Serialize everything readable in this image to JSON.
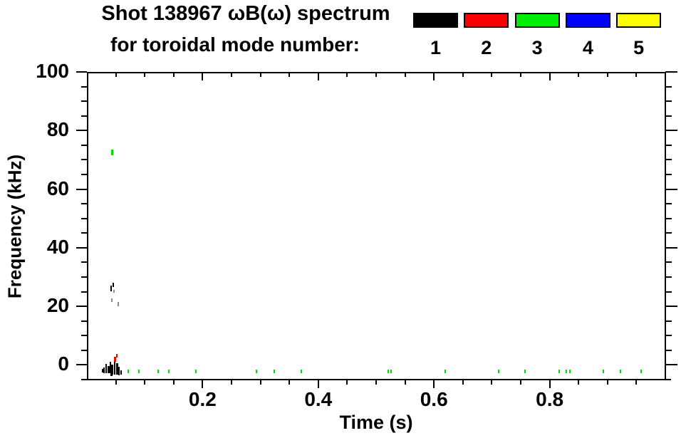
{
  "header": {
    "title_line1": "Shot 138967 ωB(ω) spectrum",
    "title_line2": "for toroidal mode number:"
  },
  "legend": {
    "title": "toroidal mode number",
    "entries": [
      {
        "label": "1",
        "color": "#000000"
      },
      {
        "label": "2",
        "color": "#ff0000"
      },
      {
        "label": "3",
        "color": "#00ee00"
      },
      {
        "label": "4",
        "color": "#0000ff"
      },
      {
        "label": "5",
        "color": "#ffff00"
      }
    ]
  },
  "chart_data": {
    "type": "scatter",
    "title": "Shot 138967 ωB(ω) spectrum for toroidal mode number: 1 2 3 4 5",
    "xlabel": "Time (s)",
    "ylabel": "Frequency (kHz)",
    "xlim": [
      0,
      1.0
    ],
    "ylim": [
      -5,
      100
    ],
    "x_major_ticks": [
      0.2,
      0.4,
      0.6,
      0.8
    ],
    "x_tick_labels": [
      "0.2",
      "0.4",
      "0.6",
      "0.8"
    ],
    "x_minor_step": 0.05,
    "y_major_ticks": [
      0,
      20,
      40,
      60,
      80,
      100
    ],
    "y_tick_labels": [
      "0",
      "20",
      "40",
      "60",
      "80",
      "100"
    ],
    "y_minor_step": 5,
    "grid": false,
    "legend_position": "top",
    "series": [
      {
        "name": "n=1",
        "color": "#000000",
        "points": [
          {
            "t": 0.027,
            "f": -1.4,
            "h": 1.2,
            "w": 2
          },
          {
            "t": 0.03,
            "f": -0.9,
            "h": 1.9,
            "w": 2
          },
          {
            "t": 0.033,
            "f": 0.3,
            "h": 3.2,
            "w": 2
          },
          {
            "t": 0.037,
            "f": -0.4,
            "h": 2.4,
            "w": 3
          },
          {
            "t": 0.041,
            "f": 1.1,
            "h": 3.9,
            "w": 2
          },
          {
            "t": 0.044,
            "f": 0.1,
            "h": 3.4,
            "w": 3
          },
          {
            "t": 0.048,
            "f": 1.6,
            "h": 4.9,
            "w": 2
          },
          {
            "t": 0.052,
            "f": 0.6,
            "h": 3.9,
            "w": 3
          },
          {
            "t": 0.055,
            "f": -0.6,
            "h": 2.9,
            "w": 2
          },
          {
            "t": 0.059,
            "f": -1.8,
            "h": 1.5,
            "w": 2
          },
          {
            "t": 0.043,
            "f": -2.8,
            "h": 1.0,
            "w": 3
          },
          {
            "t": 0.042,
            "f": 27.1,
            "h": 1.9,
            "w": 2
          },
          {
            "t": 0.046,
            "f": 28.1,
            "h": 1.5,
            "w": 2
          },
          {
            "t": 0.047,
            "f": 25.6,
            "h": 1.0,
            "w": 2,
            "dim": true
          },
          {
            "t": 0.043,
            "f": 22.7,
            "h": 1.2,
            "w": 2,
            "dim": true
          },
          {
            "t": 0.054,
            "f": 21.5,
            "h": 1.5,
            "w": 2,
            "dim": true
          }
        ]
      },
      {
        "name": "n=2",
        "color": "#ff0000",
        "points": [
          {
            "t": 0.049,
            "f": 2.8,
            "h": 1.7,
            "w": 3
          },
          {
            "t": 0.052,
            "f": 3.7,
            "h": 1.2,
            "w": 2
          }
        ]
      },
      {
        "name": "n=3",
        "color": "#00dd00",
        "points": [
          {
            "t": 0.044,
            "f": 73.5,
            "h": 1.9,
            "w": 3
          },
          {
            "t": 0.071,
            "f": -1.6,
            "h": 1.2,
            "w": 2
          },
          {
            "t": 0.09,
            "f": -1.6,
            "h": 1.2,
            "w": 2
          },
          {
            "t": 0.123,
            "f": -1.6,
            "h": 1.2,
            "w": 2
          },
          {
            "t": 0.142,
            "f": -1.6,
            "h": 1.2,
            "w": 2
          },
          {
            "t": 0.188,
            "f": -1.6,
            "h": 1.2,
            "w": 2
          },
          {
            "t": 0.293,
            "f": -1.6,
            "h": 1.2,
            "w": 2
          },
          {
            "t": 0.324,
            "f": -1.6,
            "h": 1.2,
            "w": 2
          },
          {
            "t": 0.371,
            "f": -1.6,
            "h": 1.2,
            "w": 2
          },
          {
            "t": 0.521,
            "f": -1.6,
            "h": 1.2,
            "w": 2
          },
          {
            "t": 0.526,
            "f": -1.6,
            "h": 1.2,
            "w": 2
          },
          {
            "t": 0.619,
            "f": -1.6,
            "h": 1.2,
            "w": 2
          },
          {
            "t": 0.712,
            "f": -1.6,
            "h": 1.2,
            "w": 2
          },
          {
            "t": 0.757,
            "f": -1.6,
            "h": 1.2,
            "w": 2
          },
          {
            "t": 0.816,
            "f": -1.6,
            "h": 1.2,
            "w": 2
          },
          {
            "t": 0.829,
            "f": -1.6,
            "h": 1.2,
            "w": 2
          },
          {
            "t": 0.835,
            "f": -1.6,
            "h": 1.2,
            "w": 2
          },
          {
            "t": 0.893,
            "f": -1.6,
            "h": 1.2,
            "w": 2
          },
          {
            "t": 0.923,
            "f": -1.6,
            "h": 1.2,
            "w": 2
          },
          {
            "t": 0.958,
            "f": -1.6,
            "h": 1.2,
            "w": 2
          }
        ]
      },
      {
        "name": "n=4",
        "color": "#0000ff",
        "points": []
      },
      {
        "name": "n=5",
        "color": "#ffff00",
        "points": []
      }
    ]
  }
}
